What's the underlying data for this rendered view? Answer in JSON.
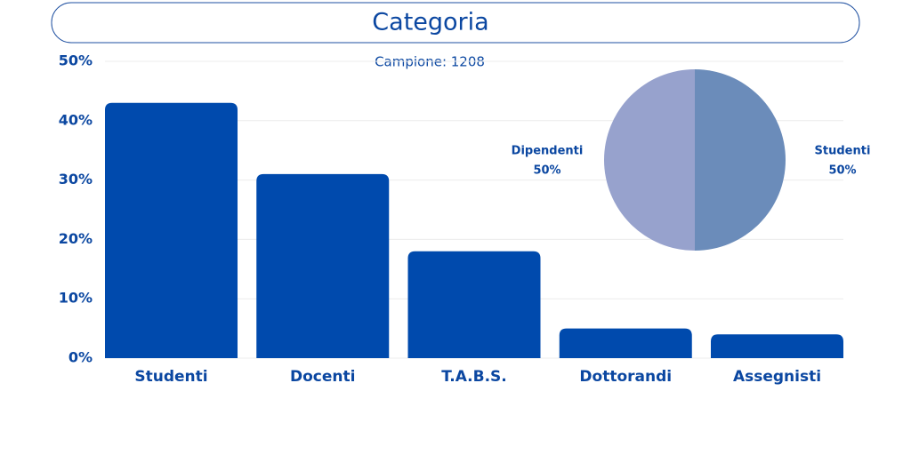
{
  "chart_data": [
    {
      "type": "bar",
      "title": "Categoria",
      "subtitle": "Campione: 1208",
      "categories": [
        "Studenti",
        "Docenti",
        "T.A.B.S.",
        "Dottorandi",
        "Assegnisti"
      ],
      "values": [
        43,
        31,
        18,
        5,
        4
      ],
      "color": "#004aad",
      "ylim": [
        0,
        50
      ],
      "yticks": [
        {
          "value": 0,
          "label": "0%"
        },
        {
          "value": 10,
          "label": "10%"
        },
        {
          "value": 20,
          "label": "20%"
        },
        {
          "value": 30,
          "label": "30%"
        },
        {
          "value": 40,
          "label": "40%"
        },
        {
          "value": 50,
          "label": "50%"
        }
      ],
      "grid": true
    },
    {
      "type": "pie",
      "categories": [
        "Dipendenti",
        "Studenti"
      ],
      "values": [
        50,
        50
      ],
      "value_labels": [
        "50%",
        "50%"
      ],
      "colors": [
        "#97a2cd",
        "#6b8cba"
      ]
    }
  ]
}
